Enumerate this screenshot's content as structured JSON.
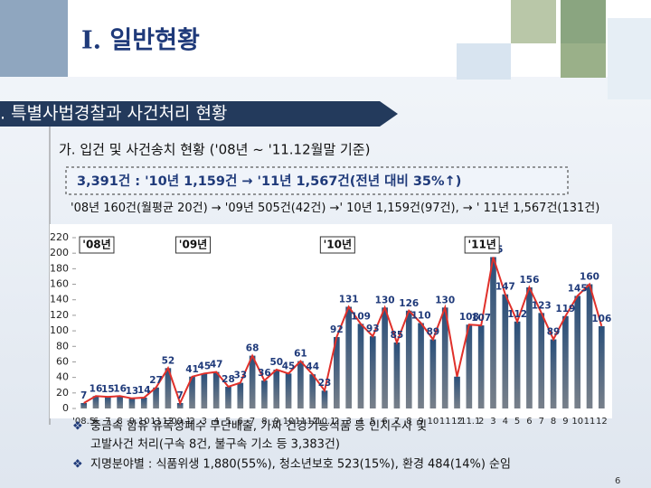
{
  "header": {
    "title": "I. 일반현황"
  },
  "section": {
    "title": ". 특별사법경찰과 사건처리 현황",
    "subtitle": "가. 입건 및 사건송치 현황 ('08년 ~ '11.12월말 기준)"
  },
  "highlight": "3,391건 : '10년 1,159건 → '11년 1,567건(전년 대비 35%↑)",
  "note": "'08년 160건(월평균 20건) → '09년 505건(42건) →' 10년 1,159건(97건), → ' 11년 1,567건(131건)",
  "bullets": [
    [
      "중금속 함유 유독성폐수 무단배출, 가짜 건강기능식품 등 인지수사 및",
      "고발사건 처리(구속 8건, 불구속 기소 등 3,383건)"
    ],
    [
      "지명분야별 : 식품위생 1,880(55%), 청소년보호 523(15%), 환경 484(14%) 순임"
    ]
  ],
  "page_number": "6",
  "chart_data": {
    "type": "bar",
    "categories": [
      "'08.5",
      "6",
      "7",
      "8",
      "9",
      "10",
      "11",
      "12",
      "'09.1",
      "2",
      "3",
      "4",
      "5",
      "6",
      "7",
      "8",
      "9",
      "10",
      "11",
      "12",
      "'10.1",
      "2",
      "3",
      "4",
      "5",
      "6",
      "7",
      "8",
      "9",
      "10",
      "11",
      "12",
      "'11.1",
      "2",
      "3",
      "4",
      "5",
      "6",
      "7",
      "8",
      "9",
      "10",
      "11",
      "12"
    ],
    "values": [
      7,
      16,
      15,
      16,
      13,
      14,
      27,
      52,
      7,
      41,
      45,
      47,
      28,
      33,
      68,
      36,
      50,
      45,
      61,
      44,
      23,
      92,
      131,
      109,
      93,
      130,
      85,
      126,
      110,
      89,
      130,
      41,
      108,
      107,
      195,
      147,
      112,
      156,
      123,
      89,
      119,
      145,
      160,
      106
    ],
    "color": "#3a6fc4",
    "line_color": "#e0302a",
    "annotations": [
      "'08년",
      "'09년",
      "'10년",
      "'11년"
    ],
    "ylim": [
      0,
      220
    ],
    "yticks": [
      0,
      20,
      40,
      60,
      80,
      100,
      120,
      140,
      160,
      180,
      200,
      220
    ]
  }
}
